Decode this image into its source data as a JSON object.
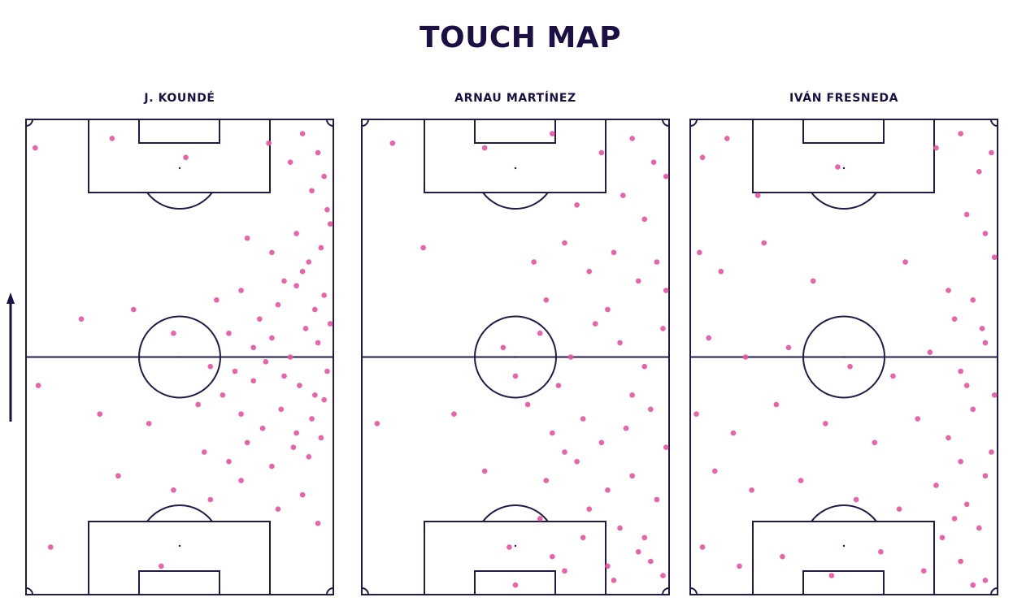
{
  "title": "TOUCH MAP",
  "chart_data": [
    {
      "type": "scatter",
      "title": "J. KOUNDÉ",
      "color": "#e8559f",
      "xlim": [
        0,
        100
      ],
      "ylim": [
        0,
        100
      ],
      "x": [
        3,
        28,
        52,
        79,
        86,
        90,
        95,
        97,
        93,
        98,
        72,
        80,
        88,
        92,
        96,
        99,
        84,
        90,
        18,
        35,
        48,
        62,
        70,
        76,
        82,
        88,
        94,
        97,
        66,
        74,
        80,
        86,
        91,
        95,
        99,
        60,
        68,
        74,
        78,
        84,
        89,
        94,
        98,
        4,
        24,
        40,
        56,
        64,
        70,
        77,
        83,
        88,
        93,
        97,
        58,
        66,
        72,
        80,
        87,
        92,
        96,
        30,
        48,
        60,
        70,
        82,
        90,
        95,
        8,
        44
      ],
      "y": [
        94,
        96,
        92,
        95,
        91,
        97,
        93,
        88,
        85,
        81,
        75,
        72,
        76,
        70,
        73,
        78,
        66,
        68,
        58,
        60,
        55,
        62,
        64,
        58,
        61,
        65,
        60,
        63,
        55,
        52,
        54,
        50,
        56,
        53,
        57,
        48,
        47,
        45,
        49,
        46,
        44,
        42,
        47,
        44,
        38,
        36,
        40,
        42,
        38,
        35,
        39,
        34,
        37,
        41,
        30,
        28,
        32,
        27,
        31,
        29,
        33,
        25,
        22,
        20,
        24,
        18,
        21,
        15,
        10,
        6
      ]
    },
    {
      "type": "scatter",
      "title": "ARNAU MARTÍNEZ",
      "color": "#e8559f",
      "xlim": [
        0,
        100
      ],
      "ylim": [
        0,
        100
      ],
      "x": [
        10,
        40,
        62,
        78,
        88,
        95,
        99,
        85,
        92,
        70,
        20,
        56,
        66,
        74,
        82,
        90,
        96,
        99,
        60,
        80,
        46,
        58,
        68,
        76,
        84,
        92,
        98,
        50,
        64,
        88,
        5,
        30,
        54,
        62,
        72,
        78,
        86,
        94,
        99,
        66,
        40,
        60,
        70,
        80,
        88,
        96,
        58,
        74,
        84,
        92,
        48,
        62,
        72,
        80,
        90,
        98,
        50,
        66,
        82,
        94
      ],
      "y": [
        95,
        94,
        97,
        93,
        96,
        91,
        88,
        84,
        79,
        82,
        73,
        70,
        74,
        68,
        72,
        66,
        70,
        64,
        62,
        60,
        52,
        55,
        50,
        57,
        53,
        48,
        56,
        46,
        44,
        42,
        36,
        38,
        40,
        34,
        37,
        32,
        35,
        39,
        31,
        30,
        26,
        24,
        28,
        22,
        25,
        20,
        16,
        18,
        14,
        12,
        10,
        8,
        12,
        6,
        9,
        4,
        2,
        5,
        3,
        7
      ]
    },
    {
      "type": "scatter",
      "title": "IVÁN FRESNEDA",
      "color": "#e8559f",
      "xlim": [
        0,
        100
      ],
      "ylim": [
        0,
        100
      ],
      "x": [
        4,
        12,
        22,
        48,
        80,
        88,
        94,
        98,
        90,
        96,
        3,
        10,
        24,
        40,
        70,
        84,
        92,
        99,
        86,
        95,
        6,
        18,
        32,
        52,
        66,
        78,
        88,
        96,
        90,
        99,
        2,
        14,
        28,
        44,
        60,
        74,
        84,
        92,
        98,
        88,
        8,
        20,
        36,
        54,
        68,
        80,
        90,
        96,
        86,
        94,
        4,
        16,
        30,
        46,
        62,
        76,
        88,
        96,
        82,
        92
      ],
      "y": [
        92,
        96,
        84,
        90,
        94,
        97,
        89,
        93,
        80,
        76,
        72,
        68,
        74,
        66,
        70,
        64,
        62,
        71,
        58,
        56,
        54,
        50,
        52,
        48,
        46,
        51,
        47,
        53,
        44,
        42,
        38,
        34,
        40,
        36,
        32,
        37,
        33,
        39,
        30,
        28,
        26,
        22,
        24,
        20,
        18,
        23,
        19,
        25,
        16,
        14,
        10,
        6,
        8,
        4,
        9,
        5,
        7,
        3,
        12,
        2
      ]
    }
  ]
}
